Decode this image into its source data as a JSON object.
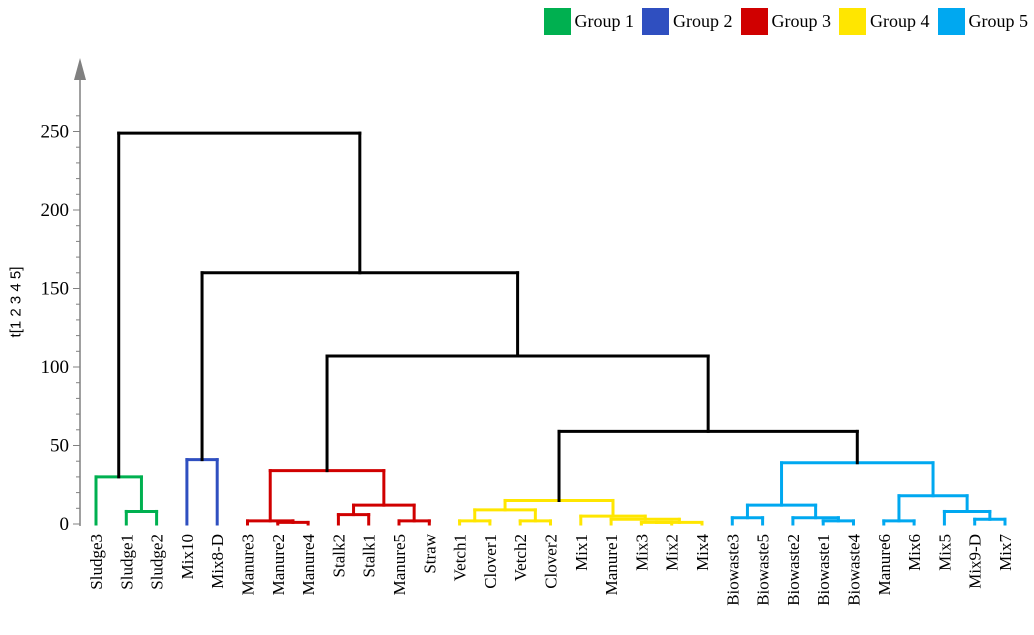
{
  "legend": [
    {
      "label": "Group 1",
      "color": "#00b050"
    },
    {
      "label": "Group 2",
      "color": "#2f4fc0"
    },
    {
      "label": "Group 3",
      "color": "#d00000"
    },
    {
      "label": "Group 4",
      "color": "#ffe600"
    },
    {
      "label": "Group 5",
      "color": "#00a8f0"
    }
  ],
  "chart_data": {
    "type": "dendrogram",
    "ylabel": "t[1 2 3 4 5]",
    "ylim": [
      0,
      270
    ],
    "yticks": [
      0,
      50,
      100,
      150,
      200,
      250
    ],
    "leaves": [
      "Sludge3",
      "Sludge1",
      "Sludge2",
      "Mix10",
      "Mix8-D",
      "Manure3",
      "Manure2",
      "Manure4",
      "Stalk2",
      "Stalk1",
      "Manure5",
      "Straw",
      "Vetch1",
      "Clover1",
      "Vetch2",
      "Clover2",
      "Mix1",
      "Manure1",
      "Mix3",
      "Mix2",
      "Mix4",
      "Biowaste3",
      "Biowaste5",
      "Biowaste2",
      "Biowaste1",
      "Biowaste4",
      "Manure6",
      "Mix6",
      "Mix5",
      "Mix9-D",
      "Mix7"
    ],
    "leaf_groups": [
      1,
      1,
      1,
      2,
      2,
      3,
      3,
      3,
      3,
      3,
      3,
      3,
      4,
      4,
      4,
      4,
      4,
      4,
      4,
      4,
      4,
      5,
      5,
      5,
      5,
      5,
      5,
      5,
      5,
      5,
      5
    ],
    "merges": [
      {
        "children": [
          "Sludge1",
          "Sludge2"
        ],
        "height": 8,
        "group": 1
      },
      {
        "children": [
          "Sludge3",
          0
        ],
        "height": 30,
        "group": 1
      },
      {
        "children": [
          "Mix10",
          "Mix8-D"
        ],
        "height": 41,
        "group": 2
      },
      {
        "children": [
          "Manure2",
          "Manure4"
        ],
        "height": 1,
        "group": 3
      },
      {
        "children": [
          "Manure3",
          3
        ],
        "height": 2,
        "group": 3
      },
      {
        "children": [
          "Stalk2",
          "Stalk1"
        ],
        "height": 6,
        "group": 3
      },
      {
        "children": [
          "Manure5",
          "Straw"
        ],
        "height": 2,
        "group": 3
      },
      {
        "children": [
          5,
          6
        ],
        "height": 12,
        "group": 3
      },
      {
        "children": [
          4,
          7
        ],
        "height": 34,
        "group": 3
      },
      {
        "children": [
          "Vetch1",
          "Clover1"
        ],
        "height": 2,
        "group": 4
      },
      {
        "children": [
          "Vetch2",
          "Clover2"
        ],
        "height": 2,
        "group": 4
      },
      {
        "children": [
          9,
          10
        ],
        "height": 9,
        "group": 4
      },
      {
        "children": [
          "Mix3",
          "Mix2"
        ],
        "height": 1,
        "group": 4
      },
      {
        "children": [
          12,
          "Mix4"
        ],
        "height": 1,
        "group": 4
      },
      {
        "children": [
          "Manure1",
          13
        ],
        "height": 3,
        "group": 4
      },
      {
        "children": [
          "Mix1",
          14
        ],
        "height": 5,
        "group": 4
      },
      {
        "children": [
          11,
          15
        ],
        "height": 15,
        "group": 4
      },
      {
        "children": [
          "Biowaste3",
          "Biowaste5"
        ],
        "height": 4,
        "group": 5
      },
      {
        "children": [
          "Biowaste1",
          "Biowaste4"
        ],
        "height": 2,
        "group": 5
      },
      {
        "children": [
          "Biowaste2",
          18
        ],
        "height": 4,
        "group": 5
      },
      {
        "children": [
          17,
          19
        ],
        "height": 12,
        "group": 5
      },
      {
        "children": [
          "Manure6",
          "Mix6"
        ],
        "height": 2,
        "group": 5
      },
      {
        "children": [
          "Mix9-D",
          "Mix7"
        ],
        "height": 3,
        "group": 5
      },
      {
        "children": [
          "Mix5",
          22
        ],
        "height": 8,
        "group": 5
      },
      {
        "children": [
          21,
          23
        ],
        "height": 18,
        "group": 5
      },
      {
        "children": [
          20,
          24
        ],
        "height": 39,
        "group": 5
      },
      {
        "children": [
          16,
          25
        ],
        "height": 59,
        "group": 0
      },
      {
        "children": [
          8,
          26
        ],
        "height": 107,
        "group": 0
      },
      {
        "children": [
          2,
          27
        ],
        "height": 160,
        "group": 0
      },
      {
        "children": [
          1,
          28
        ],
        "height": 249,
        "group": 0
      }
    ]
  }
}
